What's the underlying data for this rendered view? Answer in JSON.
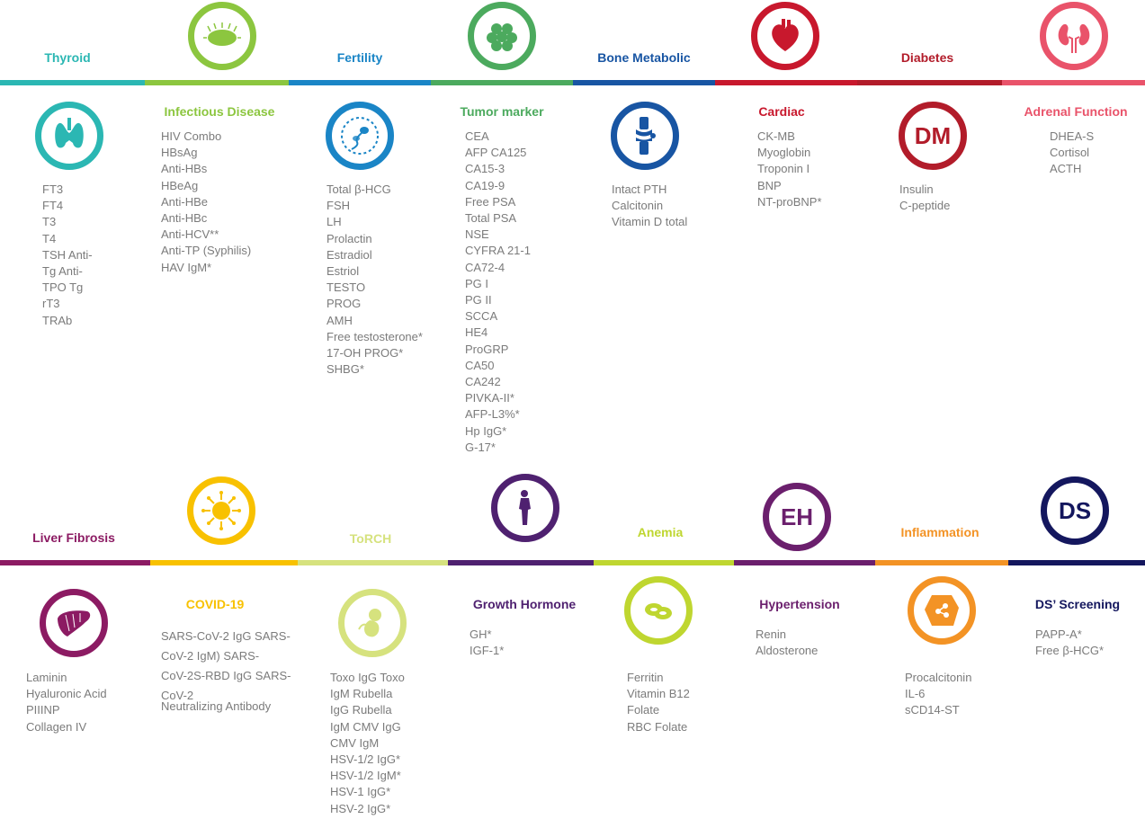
{
  "colors": {
    "teal": "#2bb7b3",
    "green_light": "#8cc63f",
    "blue": "#1a85c6",
    "green": "#4caa5e",
    "navy": "#1855a3",
    "red": "#c8182d",
    "dark_red": "#b21c2a",
    "pink_red": "#e9536a",
    "purple": "#8c1b63",
    "yellow": "#f8c100",
    "pale_yellow": "#d6e27e",
    "indigo": "#4f2170",
    "lime": "#bfd630",
    "violet": "#6b1f6d",
    "orange": "#f39325",
    "dark_navy": "#14175e",
    "text_gray": "#7b7b7b"
  },
  "top": {
    "titles": {
      "thyroid": "Thyroid",
      "infectious": "Infectious Disease",
      "fertility": "Fertility",
      "tumor": "Tumor marker",
      "bone": "Bone Metabolic",
      "cardiac": "Cardiac",
      "diabetes": "Diabetes",
      "adrenal": "Adrenal Function"
    },
    "icons": {
      "thyroid": "thyroid-icon",
      "infectious": "bacteria-icon",
      "fertility": "sperm-icon",
      "tumor": "cell-cluster-icon",
      "bone": "knee-joint-icon",
      "cardiac": "heart-icon",
      "diabetes": "DM",
      "adrenal": "kidney-icon"
    },
    "items": {
      "thyroid": [
        "FT3",
        "FT4",
        "T3",
        "T4",
        "TSH Anti-",
        "Tg Anti-",
        "TPO Tg",
        "rT3",
        "TRAb"
      ],
      "infectious": [
        "HIV Combo",
        "HBsAg",
        "Anti-HBs",
        "HBeAg",
        "Anti-HBe",
        "Anti-HBc",
        "Anti-HCV**",
        "Anti-TP (Syphilis)",
        "HAV IgM*"
      ],
      "fertility": [
        "Total  β-HCG",
        "FSH",
        "LH",
        "Prolactin",
        "Estradiol",
        "Estriol",
        "TESTO",
        "PROG",
        "AMH",
        "Free testosterone*",
        "17-OH PROG*",
        "SHBG*"
      ],
      "tumor": [
        "CEA",
        "AFP CA125",
        "CA15-3",
        "CA19-9",
        "Free PSA",
        "Total PSA",
        "NSE",
        "CYFRA 21-1",
        "CA72-4",
        "PG I",
        "PG II",
        "SCCA",
        "HE4",
        "ProGRP",
        "CA50",
        "CA242",
        "PIVKA-II*",
        "AFP-L3%*",
        "Hp IgG*",
        "G-17*"
      ],
      "bone": [
        "Intact PTH",
        "Calcitonin",
        "Vitamin D total"
      ],
      "cardiac": [
        "CK-MB",
        "Myoglobin",
        "Troponin I",
        "BNP",
        "NT-proBNP*"
      ],
      "diabetes": [
        "Insulin",
        "C-peptide"
      ],
      "adrenal": [
        "DHEA-S",
        "Cortisol",
        "ACTH"
      ]
    }
  },
  "bottom": {
    "titles": {
      "liver": "Liver Fibrosis",
      "covid": "COVID-19",
      "torch": "ToRCH",
      "growth": "Growth Hormone",
      "anemia": "Anemia",
      "hypertension": "Hypertension",
      "inflammation": "Inflammation",
      "ds": "DS’ Screening"
    },
    "icons": {
      "liver": "liver-icon",
      "covid": "virus-icon",
      "torch": "fetus-icon",
      "growth": "body-silhouette-icon",
      "anemia": "red-blood-cells-icon",
      "hypertension": "EH",
      "inflammation": "inflamed-cell-icon",
      "ds": "DS"
    },
    "items": {
      "liver": [
        "Laminin",
        "Hyaluronic Acid",
        "PIIINP",
        "Collagen IV"
      ],
      "covid": [
        "SARS-CoV-2 IgG SARS-",
        "CoV-2 IgM) SARS-",
        "CoV-2S-RBD IgG SARS-",
        "CoV-2",
        "Neutralizing Antibody"
      ],
      "torch": [
        "Toxo IgG Toxo",
        "IgM Rubella",
        "IgG Rubella",
        "IgM CMV IgG",
        "CMV IgM",
        "HSV-1/2 IgG*",
        "HSV-1/2 IgM*",
        "HSV-1 IgG*",
        "HSV-2 IgG*"
      ],
      "growth": [
        "GH*",
        "IGF-1*"
      ],
      "anemia": [
        "Ferritin",
        "Vitamin B12",
        "Folate",
        "RBC Folate"
      ],
      "hypertension": [
        "Renin",
        "Aldosterone"
      ],
      "inflammation": [
        "Procalcitonin",
        "IL-6",
        "sCD14-ST"
      ],
      "ds": [
        "PAPP-A*",
        "Free β-HCG*"
      ]
    }
  }
}
